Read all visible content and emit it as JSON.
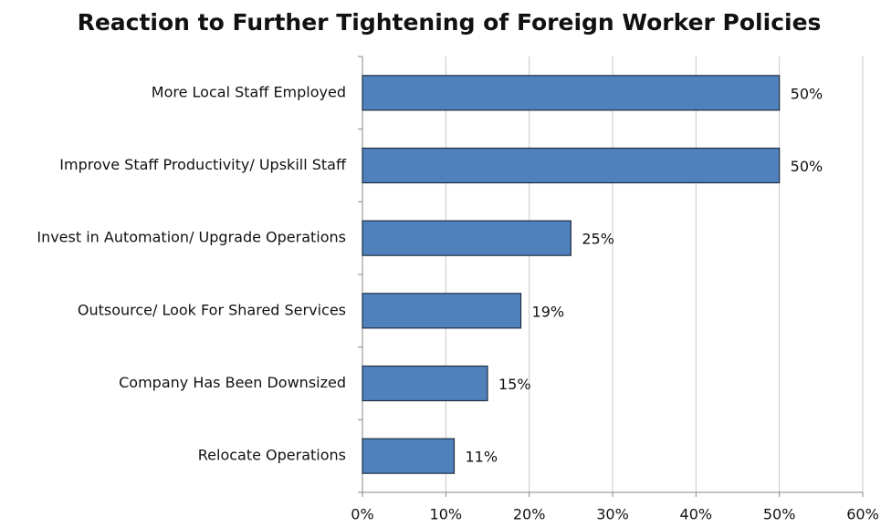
{
  "chart_data": {
    "type": "barh",
    "title": "Reaction to Further Tightening of Foreign Worker Policies",
    "categories": [
      "More Local Staff Employed",
      "Improve Staff Productivity/ Upskill Staff",
      "Invest in Automation/ Upgrade Operations",
      "Outsource/ Look For Shared Services",
      "Company Has Been Downsized",
      "Relocate Operations"
    ],
    "values": [
      50,
      50,
      25,
      19,
      15,
      11
    ],
    "value_labels": [
      "50%",
      "50%",
      "25%",
      "19%",
      "15%",
      "11%"
    ],
    "color": "#4f81bd",
    "xlim": [
      0,
      60
    ],
    "xticks": [
      {
        "value": 0,
        "label": "0%"
      },
      {
        "value": 10,
        "label": "10%"
      },
      {
        "value": 20,
        "label": "20%"
      },
      {
        "value": 30,
        "label": "30%"
      },
      {
        "value": 40,
        "label": "40%"
      },
      {
        "value": 50,
        "label": "50%"
      },
      {
        "value": 60,
        "label": "60%"
      }
    ],
    "grid": true
  }
}
